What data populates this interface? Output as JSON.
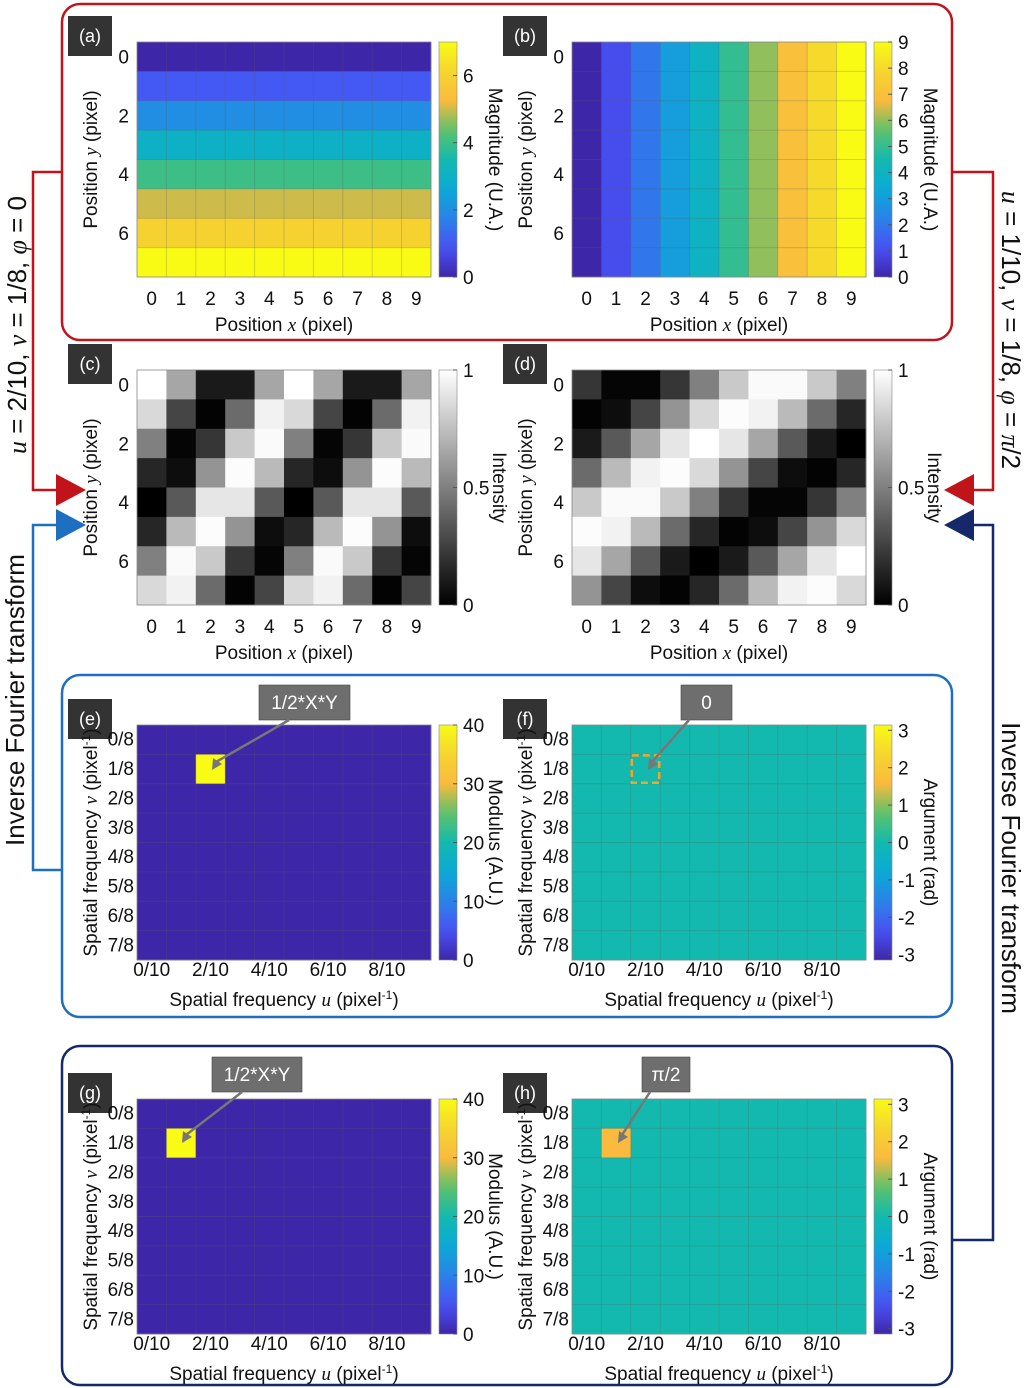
{
  "colors": {
    "red": "#c0141a",
    "blue": "#1f6fc0",
    "navy": "#14286a",
    "tag_bg": "#333333",
    "annotation_bg": "#6e6e6e",
    "highlight_dash": "#f5a623"
  },
  "side_labels": {
    "left_params": {
      "u": "u",
      "eq1": " = 2/10, ",
      "v": "v",
      "eq2": " = 1/8, ",
      "phi": "φ",
      "eq3": " = 0"
    },
    "right_params": {
      "u": "u",
      "eq1": " = 1/10, ",
      "v": "v",
      "eq2": " = 1/8, ",
      "phi": "φ",
      "eq3": " = ",
      "phival": "π",
      "eq4": "/2"
    },
    "left_transform": "Inverse Fourier transform",
    "right_transform": "Inverse Fourier transform"
  },
  "annotations": {
    "e": "1/2*X*Y",
    "f": "0",
    "g": "1/2*X*Y",
    "h": "π/2"
  },
  "chart_data": [
    {
      "id": "a",
      "tag": "(a)",
      "type": "heatmap",
      "colormap": "parula",
      "xlabel": {
        "pre": "Position ",
        "var": "x",
        "post": " (pixel)"
      },
      "ylabel": {
        "pre": "Position ",
        "var": "y",
        "post": " (pixel)"
      },
      "xticks": [
        "0",
        "1",
        "2",
        "3",
        "4",
        "5",
        "6",
        "7",
        "8",
        "9"
      ],
      "xtick_cols": [
        0,
        1,
        2,
        3,
        4,
        5,
        6,
        7,
        8,
        9
      ],
      "yticks": [
        "0",
        "2",
        "4",
        "6"
      ],
      "ytick_rows": [
        0,
        2,
        4,
        6
      ],
      "colorbar": {
        "label": "Magnitude (U.A.)",
        "clim": [
          0,
          7
        ],
        "ticks": [
          0,
          2,
          4,
          6
        ],
        "tick_labels": [
          "0",
          "2",
          "4",
          "6"
        ]
      },
      "values": [
        [
          0,
          0,
          0,
          0,
          0,
          0,
          0,
          0,
          0,
          0
        ],
        [
          1,
          1,
          1,
          1,
          1,
          1,
          1,
          1,
          1,
          1
        ],
        [
          2,
          2,
          2,
          2,
          2,
          2,
          2,
          2,
          2,
          2
        ],
        [
          3,
          3,
          3,
          3,
          3,
          3,
          3,
          3,
          3,
          3
        ],
        [
          4,
          4,
          4,
          4,
          4,
          4,
          4,
          4,
          4,
          4
        ],
        [
          5,
          5,
          5,
          5,
          5,
          5,
          5,
          5,
          5,
          5
        ],
        [
          6,
          6,
          6,
          6,
          6,
          6,
          6,
          6,
          6,
          6
        ],
        [
          7,
          7,
          7,
          7,
          7,
          7,
          7,
          7,
          7,
          7
        ]
      ]
    },
    {
      "id": "b",
      "tag": "(b)",
      "type": "heatmap",
      "colormap": "parula",
      "xlabel": {
        "pre": "Position ",
        "var": "x",
        "post": " (pixel)"
      },
      "ylabel": {
        "pre": "Position ",
        "var": "y",
        "post": " (pixel)"
      },
      "xticks": [
        "0",
        "1",
        "2",
        "3",
        "4",
        "5",
        "6",
        "7",
        "8",
        "9"
      ],
      "xtick_cols": [
        0,
        1,
        2,
        3,
        4,
        5,
        6,
        7,
        8,
        9
      ],
      "yticks": [
        "0",
        "2",
        "4",
        "6"
      ],
      "ytick_rows": [
        0,
        2,
        4,
        6
      ],
      "colorbar": {
        "label": "Magnitude (U.A.)",
        "clim": [
          0,
          9
        ],
        "ticks": [
          0,
          1,
          2,
          3,
          4,
          5,
          6,
          7,
          8,
          9
        ],
        "tick_labels": [
          "0",
          "1",
          "2",
          "3",
          "4",
          "5",
          "6",
          "7",
          "8",
          "9"
        ]
      },
      "values": [
        [
          0,
          1,
          2,
          3,
          4,
          5,
          6,
          7,
          8,
          9
        ],
        [
          0,
          1,
          2,
          3,
          4,
          5,
          6,
          7,
          8,
          9
        ],
        [
          0,
          1,
          2,
          3,
          4,
          5,
          6,
          7,
          8,
          9
        ],
        [
          0,
          1,
          2,
          3,
          4,
          5,
          6,
          7,
          8,
          9
        ],
        [
          0,
          1,
          2,
          3,
          4,
          5,
          6,
          7,
          8,
          9
        ],
        [
          0,
          1,
          2,
          3,
          4,
          5,
          6,
          7,
          8,
          9
        ],
        [
          0,
          1,
          2,
          3,
          4,
          5,
          6,
          7,
          8,
          9
        ],
        [
          0,
          1,
          2,
          3,
          4,
          5,
          6,
          7,
          8,
          9
        ]
      ]
    },
    {
      "id": "c",
      "tag": "(c)",
      "type": "heatmap",
      "colormap": "gray",
      "xlabel": {
        "pre": "Position ",
        "var": "x",
        "post": " (pixel)"
      },
      "ylabel": {
        "pre": "Position ",
        "var": "y",
        "post": " (pixel)"
      },
      "xticks": [
        "0",
        "1",
        "2",
        "3",
        "4",
        "5",
        "6",
        "7",
        "8",
        "9"
      ],
      "xtick_cols": [
        0,
        1,
        2,
        3,
        4,
        5,
        6,
        7,
        8,
        9
      ],
      "yticks": [
        "0",
        "2",
        "4",
        "6"
      ],
      "ytick_rows": [
        0,
        2,
        4,
        6
      ],
      "colorbar": {
        "label": "Intensity",
        "clim": [
          0,
          1
        ],
        "ticks": [
          0,
          0.5,
          1
        ],
        "tick_labels": [
          "0",
          "0.5",
          "1"
        ]
      },
      "values": [
        [
          1,
          0.65,
          0.1,
          0.1,
          0.65,
          1,
          0.65,
          0.1,
          0.1,
          0.65
        ],
        [
          0.85,
          0.27,
          0.01,
          0.42,
          0.95,
          0.85,
          0.27,
          0.01,
          0.42,
          0.95
        ],
        [
          0.5,
          0.02,
          0.21,
          0.79,
          0.98,
          0.5,
          0.02,
          0.21,
          0.79,
          0.98
        ],
        [
          0.15,
          0.05,
          0.58,
          0.99,
          0.73,
          0.15,
          0.05,
          0.58,
          0.99,
          0.73
        ],
        [
          0,
          0.35,
          0.9,
          0.9,
          0.35,
          0,
          0.35,
          0.9,
          0.9,
          0.35
        ],
        [
          0.15,
          0.73,
          0.99,
          0.58,
          0.05,
          0.15,
          0.73,
          0.99,
          0.58,
          0.05
        ],
        [
          0.5,
          0.98,
          0.79,
          0.21,
          0.02,
          0.5,
          0.98,
          0.79,
          0.21,
          0.02
        ],
        [
          0.85,
          0.95,
          0.42,
          0.01,
          0.27,
          0.85,
          0.95,
          0.42,
          0.01,
          0.27
        ]
      ]
    },
    {
      "id": "d",
      "tag": "(d)",
      "type": "heatmap",
      "colormap": "gray",
      "xlabel": {
        "pre": "Position ",
        "var": "x",
        "post": " (pixel)"
      },
      "ylabel": {
        "pre": "Position ",
        "var": "y",
        "post": " (pixel)"
      },
      "xticks": [
        "0",
        "1",
        "2",
        "3",
        "4",
        "5",
        "6",
        "7",
        "8",
        "9"
      ],
      "xtick_cols": [
        0,
        1,
        2,
        3,
        4,
        5,
        6,
        7,
        8,
        9
      ],
      "yticks": [
        "0",
        "2",
        "4",
        "6"
      ],
      "ytick_rows": [
        0,
        2,
        4,
        6
      ],
      "colorbar": {
        "label": "Intensity",
        "clim": [
          0,
          1
        ],
        "ticks": [
          0,
          0.5,
          1
        ],
        "tick_labels": [
          "0",
          "0.5",
          "1"
        ]
      },
      "values": [
        [
          0.21,
          0.02,
          0.02,
          0.21,
          0.5,
          0.79,
          0.98,
          0.98,
          0.79,
          0.5
        ],
        [
          0.01,
          0.05,
          0.27,
          0.58,
          0.85,
          0.99,
          0.95,
          0.73,
          0.42,
          0.15
        ],
        [
          0.1,
          0.35,
          0.65,
          0.9,
          1,
          0.9,
          0.65,
          0.35,
          0.1,
          0
        ],
        [
          0.42,
          0.73,
          0.95,
          0.99,
          0.85,
          0.58,
          0.27,
          0.05,
          0.01,
          0.15
        ],
        [
          0.79,
          0.98,
          0.98,
          0.79,
          0.5,
          0.21,
          0.02,
          0.02,
          0.21,
          0.5
        ],
        [
          0.99,
          0.95,
          0.73,
          0.42,
          0.15,
          0.01,
          0.05,
          0.27,
          0.58,
          0.85
        ],
        [
          0.9,
          0.65,
          0.35,
          0.1,
          0,
          0.1,
          0.35,
          0.65,
          0.9,
          1
        ],
        [
          0.58,
          0.27,
          0.05,
          0.01,
          0.15,
          0.42,
          0.73,
          0.95,
          0.99,
          0.85
        ]
      ]
    },
    {
      "id": "e",
      "tag": "(e)",
      "type": "heatmap",
      "colormap": "parula",
      "xlabel": {
        "pre": "Spatial frequency ",
        "var": "u",
        "post": " (pixel",
        "sup": "-1",
        "end": ")"
      },
      "ylabel": {
        "pre": "Spatial frequency ",
        "var": "v",
        "post": " (pixel",
        "sup": "-1",
        "end": ")"
      },
      "xticks": [
        "0/10",
        "2/10",
        "4/10",
        "6/10",
        "8/10"
      ],
      "xtick_cols": [
        0,
        2,
        4,
        6,
        8
      ],
      "yticks": [
        "0/8",
        "1/8",
        "2/8",
        "3/8",
        "4/8",
        "5/8",
        "6/8",
        "7/8"
      ],
      "ytick_rows": [
        0,
        1,
        2,
        3,
        4,
        5,
        6,
        7
      ],
      "colorbar": {
        "label": "Modulus (A.U.)",
        "clim": [
          0,
          40
        ],
        "ticks": [
          0,
          10,
          20,
          30,
          40
        ],
        "tick_labels": [
          "0",
          "10",
          "20",
          "30",
          "40"
        ]
      },
      "background_value": 0,
      "peak": {
        "col": 2,
        "row": 1,
        "u": "2/10",
        "v": "1/8",
        "value": 40
      }
    },
    {
      "id": "f",
      "tag": "(f)",
      "type": "heatmap",
      "colormap": "parula",
      "xlabel": {
        "pre": "Spatial frequency ",
        "var": "u",
        "post": " (pixel",
        "sup": "-1",
        "end": ")"
      },
      "ylabel": {
        "pre": "Spatial frequency ",
        "var": "v",
        "post": " (pixel",
        "sup": "-1",
        "end": ")"
      },
      "xticks": [
        "0/10",
        "2/10",
        "4/10",
        "6/10",
        "8/10"
      ],
      "xtick_cols": [
        0,
        2,
        4,
        6,
        8
      ],
      "yticks": [
        "0/8",
        "1/8",
        "2/8",
        "3/8",
        "4/8",
        "5/8",
        "6/8",
        "7/8"
      ],
      "ytick_rows": [
        0,
        1,
        2,
        3,
        4,
        5,
        6,
        7
      ],
      "colorbar": {
        "label": "Argument (rad)",
        "clim": [
          -3.1416,
          3.1416
        ],
        "ticks": [
          -3,
          -2,
          -1,
          0,
          1,
          2,
          3
        ],
        "tick_labels": [
          "-3",
          "-2",
          "-1",
          "0",
          "1",
          "2",
          "3"
        ]
      },
      "background_value": 0,
      "highlight": {
        "col": 2,
        "row": 1,
        "u": "2/10",
        "v": "1/8",
        "value": 0
      }
    },
    {
      "id": "g",
      "tag": "(g)",
      "type": "heatmap",
      "colormap": "parula",
      "xlabel": {
        "pre": "Spatial frequency ",
        "var": "u",
        "post": " (pixel",
        "sup": "-1",
        "end": ")"
      },
      "ylabel": {
        "pre": "Spatial frequency ",
        "var": "v",
        "post": " (pixel",
        "sup": "-1",
        "end": ")"
      },
      "xticks": [
        "0/10",
        "2/10",
        "4/10",
        "6/10",
        "8/10"
      ],
      "xtick_cols": [
        0,
        2,
        4,
        6,
        8
      ],
      "yticks": [
        "0/8",
        "1/8",
        "2/8",
        "3/8",
        "4/8",
        "5/8",
        "6/8",
        "7/8"
      ],
      "ytick_rows": [
        0,
        1,
        2,
        3,
        4,
        5,
        6,
        7
      ],
      "colorbar": {
        "label": "Modulus (A.U.)",
        "clim": [
          0,
          40
        ],
        "ticks": [
          0,
          10,
          20,
          30,
          40
        ],
        "tick_labels": [
          "0",
          "10",
          "20",
          "30",
          "40"
        ]
      },
      "background_value": 0,
      "peak": {
        "col": 1,
        "row": 1,
        "u": "1/10",
        "v": "1/8",
        "value": 40
      }
    },
    {
      "id": "h",
      "tag": "(h)",
      "type": "heatmap",
      "colormap": "parula",
      "xlabel": {
        "pre": "Spatial frequency ",
        "var": "u",
        "post": " (pixel",
        "sup": "-1",
        "end": ")"
      },
      "ylabel": {
        "pre": "Spatial frequency ",
        "var": "v",
        "post": " (pixel",
        "sup": "-1",
        "end": ")"
      },
      "xticks": [
        "0/10",
        "2/10",
        "4/10",
        "6/10",
        "8/10"
      ],
      "xtick_cols": [
        0,
        2,
        4,
        6,
        8
      ],
      "yticks": [
        "0/8",
        "1/8",
        "2/8",
        "3/8",
        "4/8",
        "5/8",
        "6/8",
        "7/8"
      ],
      "ytick_rows": [
        0,
        1,
        2,
        3,
        4,
        5,
        6,
        7
      ],
      "colorbar": {
        "label": "Argument (rad)",
        "clim": [
          -3.1416,
          3.1416
        ],
        "ticks": [
          -3,
          -2,
          -1,
          0,
          1,
          2,
          3
        ],
        "tick_labels": [
          "-3",
          "-2",
          "-1",
          "0",
          "1",
          "2",
          "3"
        ]
      },
      "background_value": 0,
      "peak": {
        "col": 1,
        "row": 1,
        "u": "1/10",
        "v": "1/8",
        "value": 1.5708
      }
    }
  ]
}
